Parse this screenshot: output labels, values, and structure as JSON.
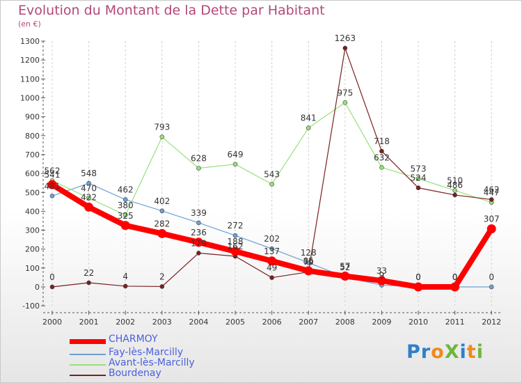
{
  "title": "Evolution du Montant de la Dette par Habitant",
  "subtitle": "(en €)",
  "logo": {
    "text": "ProXiti",
    "letters": [
      {
        "ch": "P",
        "color": "#2f7fc9"
      },
      {
        "ch": "r",
        "color": "#2f7fc9"
      },
      {
        "ch": "o",
        "color": "#f08a1c"
      },
      {
        "ch": "X",
        "color": "#6cb83a"
      },
      {
        "ch": "i",
        "color": "#2f7fc9"
      },
      {
        "ch": "t",
        "color": "#f08a1c"
      },
      {
        "ch": "i",
        "color": "#6cb83a"
      }
    ]
  },
  "chart_data": {
    "type": "line",
    "title": "Evolution du Montant de la Dette par Habitant",
    "subtitle": "(en €)",
    "xlabel": "",
    "ylabel": "",
    "x": [
      "2000",
      "2001",
      "2002",
      "2003",
      "2004",
      "2005",
      "2006",
      "2007",
      "2008",
      "2009",
      "2010",
      "2011",
      "2012"
    ],
    "ylim": [
      -100,
      1300
    ],
    "yticks": [
      -100,
      0,
      100,
      200,
      300,
      400,
      500,
      600,
      700,
      800,
      900,
      1000,
      1100,
      1200,
      1300
    ],
    "grid": "vertical-dashed",
    "legend": "bottom-left",
    "series": [
      {
        "name": "CHARMOY",
        "color": "#ff0000",
        "values": [
          541,
          422,
          325,
          282,
          236,
          188,
          137,
          85,
          57,
          33,
          0,
          0,
          307
        ]
      },
      {
        "name": "Fay-lès-Marcilly",
        "color": "#6f9fd0",
        "values": [
          481,
          548,
          462,
          402,
          339,
          272,
          202,
          128,
          52,
          9,
          0,
          0,
          0
        ]
      },
      {
        "name": "Avant-lès-Marcilly",
        "color": "#99e07a",
        "values": [
          562,
          470,
          380,
          793,
          628,
          649,
          543,
          841,
          975,
          632,
          573,
          510,
          447
        ]
      },
      {
        "name": "Bourdenay",
        "color": "#7a1f1f",
        "values": [
          0,
          22,
          4,
          2,
          179,
          162,
          49,
          79,
          1263,
          718,
          524,
          486,
          462
        ]
      }
    ]
  }
}
